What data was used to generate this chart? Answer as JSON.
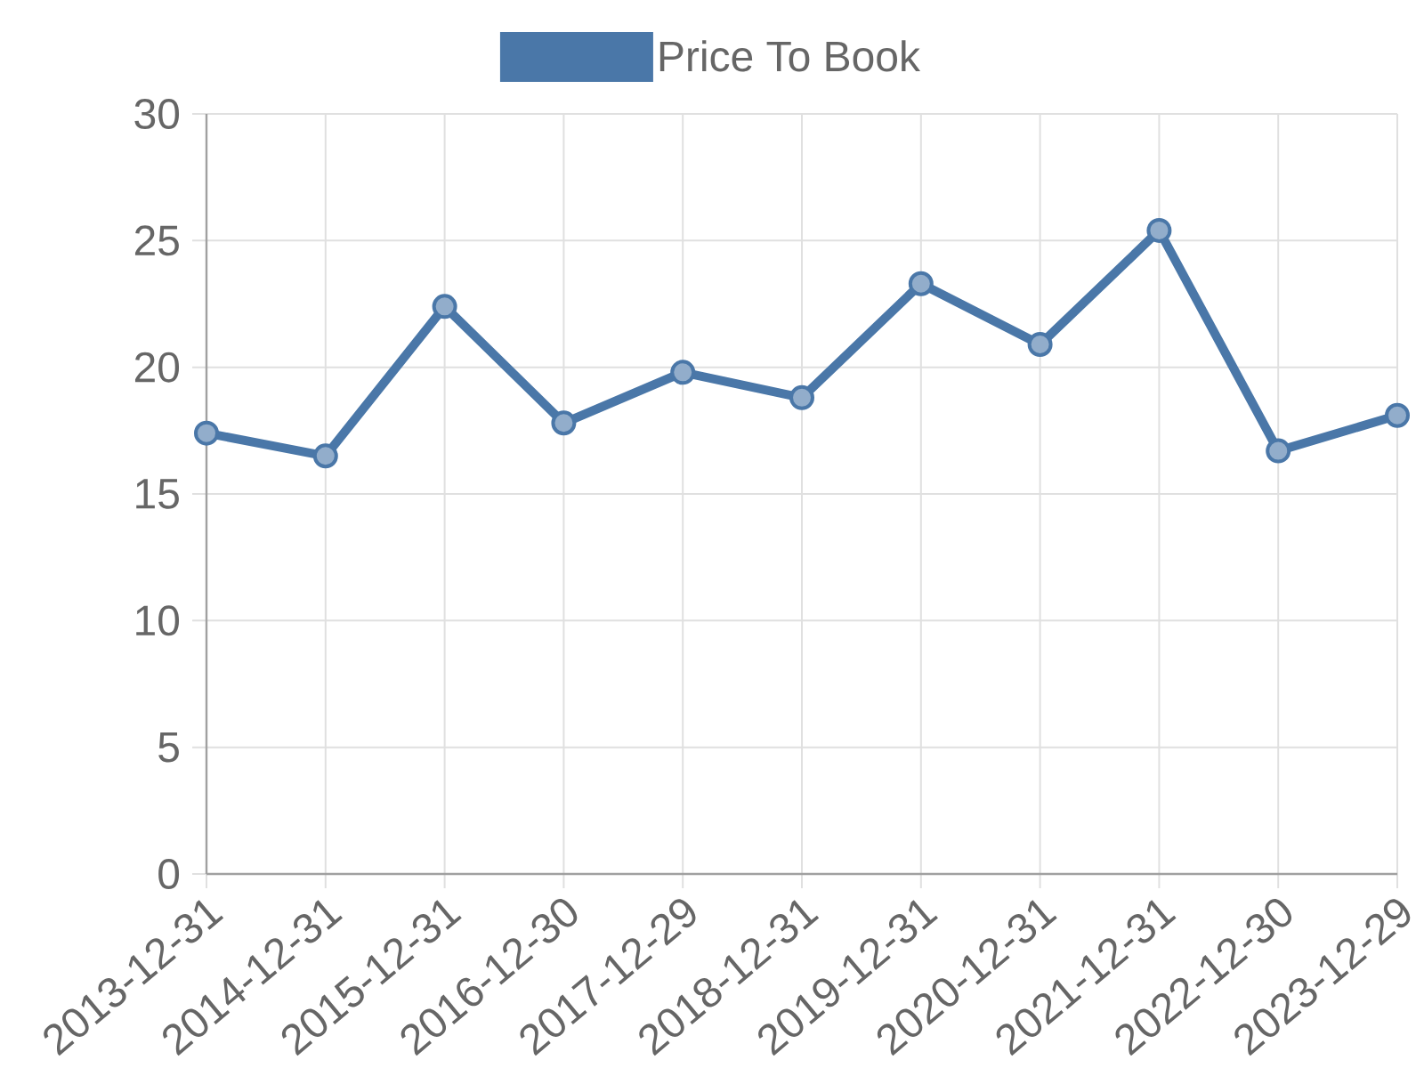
{
  "chart_data": {
    "type": "line",
    "categories": [
      "2013-12-31",
      "2014-12-31",
      "2015-12-31",
      "2016-12-30",
      "2017-12-29",
      "2018-12-31",
      "2019-12-31",
      "2020-12-31",
      "2021-12-31",
      "2022-12-30",
      "2023-12-29"
    ],
    "series": [
      {
        "name": "Price To Book",
        "color": "#4a77a8",
        "values": [
          17.4,
          16.5,
          22.4,
          17.8,
          19.8,
          18.8,
          23.3,
          20.9,
          25.4,
          16.7,
          18.1
        ]
      }
    ],
    "ylim": [
      0,
      30
    ],
    "yticks": [
      0,
      5,
      10,
      15,
      20,
      25,
      30
    ],
    "grid": true,
    "legend": "top",
    "marker": "circle",
    "line_style": "solid"
  }
}
